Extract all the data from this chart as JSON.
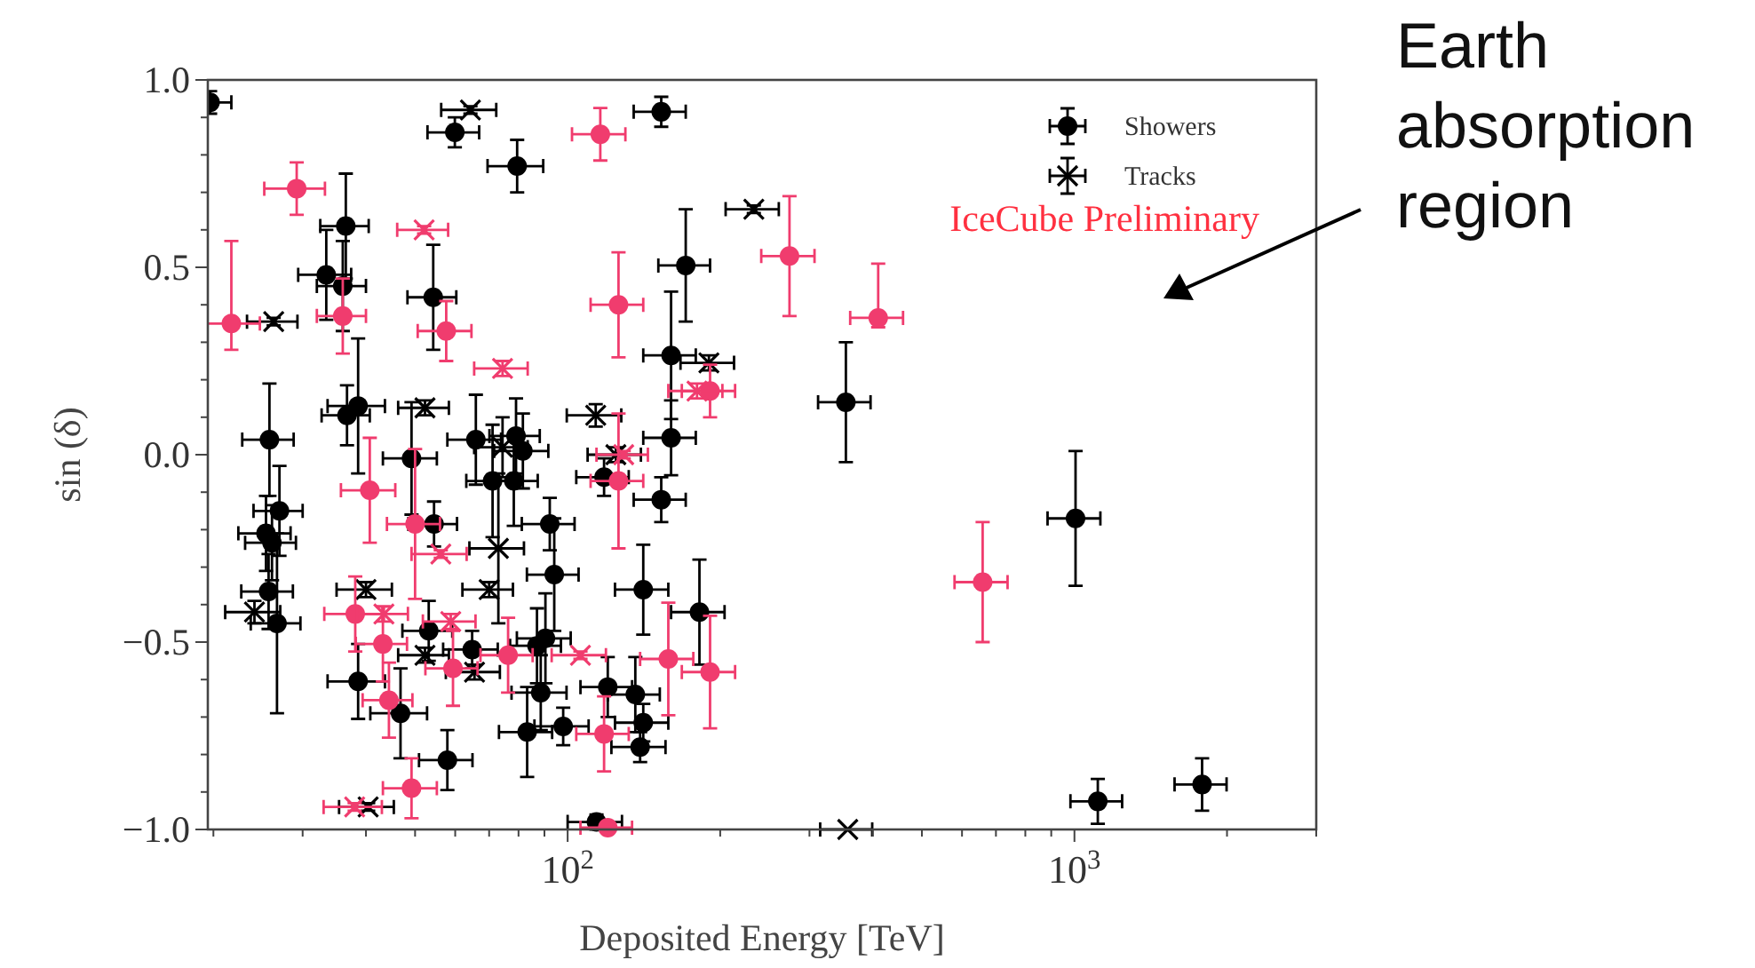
{
  "chart_data": {
    "type": "scatter",
    "xlabel": "Deposited Energy [TeV]",
    "ylabel": "sin (δ)",
    "log": "x",
    "xlim": [
      19.5,
      3000
    ],
    "ylim": [
      -1,
      1
    ],
    "xticks": [
      {
        "value": 20,
        "label": null
      },
      {
        "value": 30,
        "label": null
      },
      {
        "value": 40,
        "label": null
      },
      {
        "value": 50,
        "label": null
      },
      {
        "value": 60,
        "label": null
      },
      {
        "value": 70,
        "label": null
      },
      {
        "value": 80,
        "label": null
      },
      {
        "value": 90,
        "label": null
      },
      {
        "value": 100,
        "label": "10$^{2}$"
      },
      {
        "value": 200,
        "label": null
      },
      {
        "value": 300,
        "label": null
      },
      {
        "value": 400,
        "label": null
      },
      {
        "value": 500,
        "label": null
      },
      {
        "value": 600,
        "label": null
      },
      {
        "value": 700,
        "label": null
      },
      {
        "value": 800,
        "label": null
      },
      {
        "value": 900,
        "label": null
      },
      {
        "value": 1000,
        "label": "10$^{3}$"
      },
      {
        "value": 2000,
        "label": null
      },
      {
        "value": 3000,
        "label": null
      }
    ],
    "yticks": [
      {
        "value": -1,
        "label": "−1.0"
      },
      {
        "value": -0.9,
        "label": null
      },
      {
        "value": -0.8,
        "label": null
      },
      {
        "value": -0.7,
        "label": null
      },
      {
        "value": -0.6,
        "label": null
      },
      {
        "value": -0.5,
        "label": "−0.5"
      },
      {
        "value": -0.4,
        "label": null
      },
      {
        "value": -0.3,
        "label": null
      },
      {
        "value": -0.2,
        "label": null
      },
      {
        "value": -0.1,
        "label": null
      },
      {
        "value": 0,
        "label": "0.0"
      },
      {
        "value": 0.1,
        "label": null
      },
      {
        "value": 0.2,
        "label": null
      },
      {
        "value": 0.3,
        "label": null
      },
      {
        "value": 0.4,
        "label": null
      },
      {
        "value": 0.5,
        "label": "0.5"
      },
      {
        "value": 0.6,
        "label": null
      },
      {
        "value": 0.7,
        "label": null
      },
      {
        "value": 0.8,
        "label": null
      },
      {
        "value": 0.9,
        "label": null
      },
      {
        "value": 1,
        "label": "1.0"
      }
    ],
    "legend": "top right",
    "grid": false,
    "annotations": [
      "IceCube Preliminary",
      "Earth absorption region"
    ],
    "series": [
      {
        "name": "Showers",
        "color": "#000000",
        "marker": "circle",
        "x": [
          19.7,
          59.9,
          79.5,
          153,
          36.5,
          33.4,
          36,
          54.3,
          171,
          160,
          354,
          36.7,
          38.6,
          25.8,
          65.9,
          79.1,
          81.6,
          160,
          49.2,
          71.1,
          78.3,
          118,
          153,
          54.5,
          92.2,
          94.1,
          141,
          25.4,
          26.1,
          27,
          25.7,
          26.7,
          1005,
          182,
          38.6,
          46.8,
          53.2,
          64.8,
          57.9,
          90.4,
          87,
          83.2,
          88.5,
          98,
          120,
          136,
          141,
          139,
          114,
          1112,
          1786
        ],
        "values": [
          0.94,
          0.86,
          0.77,
          0.915,
          0.61,
          0.48,
          0.45,
          0.42,
          0.505,
          0.265,
          0.14,
          0.105,
          0.13,
          0.04,
          0.04,
          0.05,
          0.01,
          0.045,
          -0.01,
          -0.07,
          -0.07,
          -0.06,
          -0.12,
          -0.185,
          -0.185,
          -0.32,
          -0.36,
          -0.21,
          -0.235,
          -0.15,
          -0.365,
          -0.45,
          -0.17,
          -0.42,
          -0.605,
          -0.69,
          -0.47,
          -0.52,
          -0.815,
          -0.49,
          -0.51,
          -0.74,
          -0.635,
          -0.725,
          -0.62,
          -0.64,
          -0.715,
          -0.78,
          -0.98,
          -0.925,
          -0.88
        ],
        "errors": [
          0.03,
          0.04,
          0.07,
          0.04,
          0.14,
          0.12,
          0.12,
          0.14,
          0.15,
          0.17,
          0.16,
          0.08,
          0.18,
          0.15,
          0.12,
          0.1,
          0.1,
          0.1,
          0.15,
          0.15,
          0.12,
          0.05,
          0.06,
          0.06,
          0.07,
          0.15,
          0.12,
          0.1,
          0.1,
          0.12,
          0.1,
          0.24,
          0.18,
          0.14,
          0.1,
          0.12,
          0.08,
          0.05,
          0.08,
          0.12,
          0.1,
          0.12,
          0.1,
          0.05,
          0.08,
          0.1,
          0.05,
          0.04,
          0.02,
          0.06,
          0.07
        ],
        "xerrors": [
          2,
          7,
          10,
          18,
          4,
          4,
          4,
          6,
          20,
          19,
          42,
          4,
          5,
          3,
          8,
          9,
          10,
          19,
          6,
          8,
          9,
          14,
          18,
          6,
          11,
          11,
          17,
          3,
          3,
          3,
          3,
          3,
          120,
          22,
          5,
          6,
          6,
          8,
          7,
          11,
          10,
          10,
          11,
          12,
          14,
          16,
          17,
          17,
          14,
          130,
          210
        ]
      },
      {
        "name": "Tracks",
        "color": "#000000",
        "marker": "cross",
        "x": [
          64.3,
          26.3,
          233,
          52.3,
          113.6,
          190,
          124.5,
          74.4,
          73,
          70,
          40,
          52.3,
          65.5,
          24.1,
          40.4,
          357
        ],
        "values": [
          0.92,
          0.355,
          0.655,
          0.125,
          0.105,
          0.245,
          0.0,
          0.02,
          -0.25,
          -0.36,
          -0.36,
          -0.535,
          -0.58,
          -0.42,
          -0.94,
          -1.0
        ],
        "errors": [
          0.01,
          0.01,
          0.01,
          0.02,
          0.03,
          0.02,
          0.02,
          0.08,
          0.2,
          0.02,
          0.02,
          0.02,
          0.02,
          0.03,
          0.01,
          null
        ],
        "xerrors": [
          8,
          3,
          28,
          6,
          14,
          23,
          15,
          9,
          9,
          8,
          5,
          6,
          8,
          3,
          5,
          42
        ]
      },
      {
        "color": "#f03c6e",
        "marker": "circle",
        "x": [
          21.7,
          29.2,
          36,
          57.6,
          116,
          126,
          274,
          410,
          40.7,
          50,
          126,
          659,
          38.1,
          43.2,
          44.4,
          59.4,
          76.3,
          118,
          158,
          191,
          49.2,
          191,
          120
        ],
        "values": [
          0.35,
          0.71,
          0.37,
          0.33,
          0.855,
          0.4,
          0.53,
          0.365,
          -0.095,
          -0.185,
          -0.07,
          -0.34,
          -0.425,
          -0.505,
          -0.655,
          -0.57,
          -0.535,
          -0.745,
          -0.545,
          -0.58,
          -0.89,
          0.17,
          -0.995
        ],
        "errors": [
          [
            0.28,
            0.57
          ],
          0.07,
          0.1,
          0.08,
          0.07,
          0.14,
          0.16,
          [
            0.34,
            0.51
          ],
          0.14,
          0.2,
          0.18,
          0.16,
          0.1,
          0.1,
          0.1,
          0.1,
          0.1,
          0.1,
          0.15,
          0.15,
          0.08,
          0.07,
          null
        ],
        "xerrors": [
          3,
          4,
          4,
          7,
          14,
          15,
          33,
          49,
          5,
          6,
          15,
          79,
          5,
          5,
          5,
          7,
          9,
          14,
          19,
          23,
          6,
          23,
          14
        ]
      },
      {
        "color": "#f03c6e",
        "marker": "cross",
        "x": [
          52.1,
          74.4,
          129,
          56.2,
          58.8,
          43.4,
          106,
          180,
          38
        ],
        "values": [
          0.6,
          0.23,
          0.0,
          -0.265,
          -0.445,
          -0.425,
          -0.535,
          0.17,
          -0.94
        ],
        "errors": [
          0.01,
          0.02,
          0.01,
          0.01,
          0.02,
          0.02,
          0.01,
          0.02,
          0.01
        ],
        "xerrors": [
          6,
          9,
          15,
          7,
          7,
          5,
          13,
          22,
          5
        ]
      }
    ]
  }
}
